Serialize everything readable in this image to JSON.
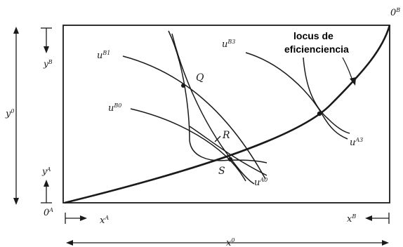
{
  "labels": {
    "o_b": "0",
    "o_b_sup": "B",
    "o_a": "0",
    "o_a_sup": "A",
    "y_b": "y",
    "y_b_sup": "B",
    "y_a": "y",
    "y_a_sup": "A",
    "y_total": "y",
    "y_total_sup": "0",
    "x_a": "x",
    "x_a_sup": "A",
    "x_b": "x",
    "x_b_sup": "B",
    "x_total": "x",
    "x_total_sup": "0",
    "u_b1": "u",
    "u_b1_sup": "B1",
    "u_b0": "u",
    "u_b0_sup": "B0",
    "u_b3": "u",
    "u_b3_sup": "B3",
    "u_a0": "u",
    "u_a0_sup": "A0",
    "u_a3": "u",
    "u_a3_sup": "A3",
    "point_q": "Q",
    "point_r": "R",
    "point_s": "S",
    "locus_line1": "locus de",
    "locus_line2": "eficienciencia"
  },
  "colors": {
    "ink": "#1a1a1a"
  }
}
